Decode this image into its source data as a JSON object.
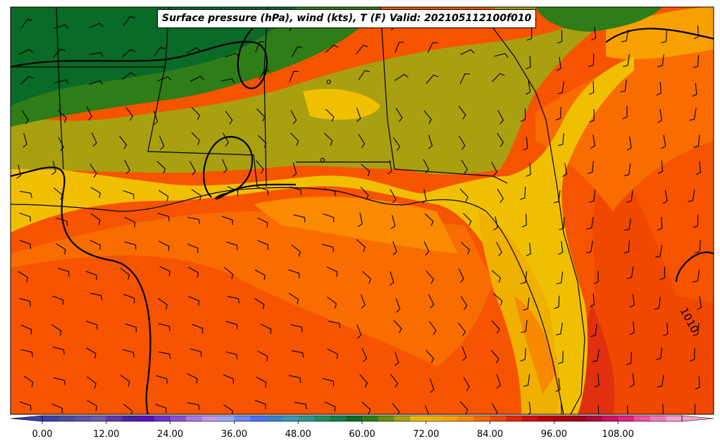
{
  "title": "Surface pressure (hPa), wind (kts), T (F) Valid: 202105112100f010",
  "contour_label": "1010",
  "colorbar": {
    "tick_labels": [
      "0.00",
      "12.00",
      "24.00",
      "36.00",
      "48.00",
      "60.00",
      "72.00",
      "84.00",
      "96.00",
      "108.00"
    ],
    "colors": [
      "#3b3fa8",
      "#4a4aa0",
      "#5a52a8",
      "#6a5ab0",
      "#5a3aa8",
      "#4a20a0",
      "#5a10b8",
      "#6a30c8",
      "#8a50d8",
      "#a878e8",
      "#c098f0",
      "#9aa8f8",
      "#6a88f8",
      "#4a70f0",
      "#3a80d0",
      "#3a98b8",
      "#2a9888",
      "#1a9060",
      "#128048",
      "#0a6a28",
      "#2a7a18",
      "#6a8a18",
      "#a8a010",
      "#e8b808",
      "#f0b000",
      "#f8a000",
      "#f88800",
      "#f86800",
      "#f04800",
      "#e02800",
      "#d01010",
      "#c00000",
      "#b00010",
      "#a00018",
      "#b00838",
      "#d01060",
      "#e82080",
      "#f050a0",
      "#f078b8",
      "#f8a0d0"
    ]
  },
  "legend_colors": {
    "dark_green": "#0a6a28",
    "green": "#2e7d18",
    "olive": "#a8a010",
    "yellow": "#f0c000",
    "light_orange": "#f8a000",
    "orange": "#f86c00",
    "red_orange": "#f04800",
    "red": "#e02800"
  }
}
